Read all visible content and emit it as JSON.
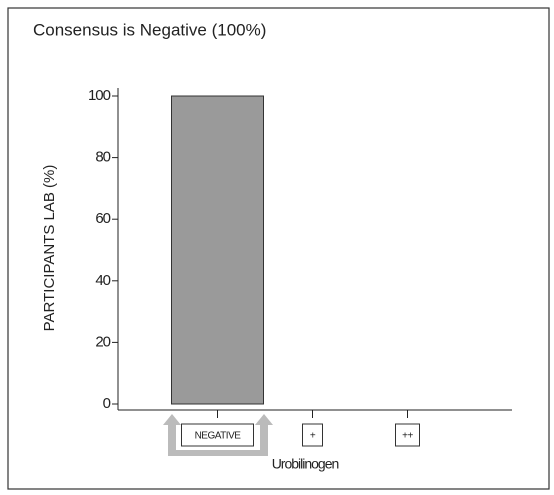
{
  "chart_data": {
    "type": "bar",
    "title": "Consensus is Negative (100%)",
    "y_label": "PARTICIPANTS LAB (%)",
    "x_label": "Urobilinogen",
    "categories": [
      "NEGATIVE",
      "+",
      "++"
    ],
    "values": [
      100,
      0,
      0
    ],
    "color": "#9a9a9a",
    "ylim": [
      0,
      100
    ],
    "yticks": [
      0,
      20,
      40,
      60,
      80,
      100
    ],
    "grid": false
  }
}
